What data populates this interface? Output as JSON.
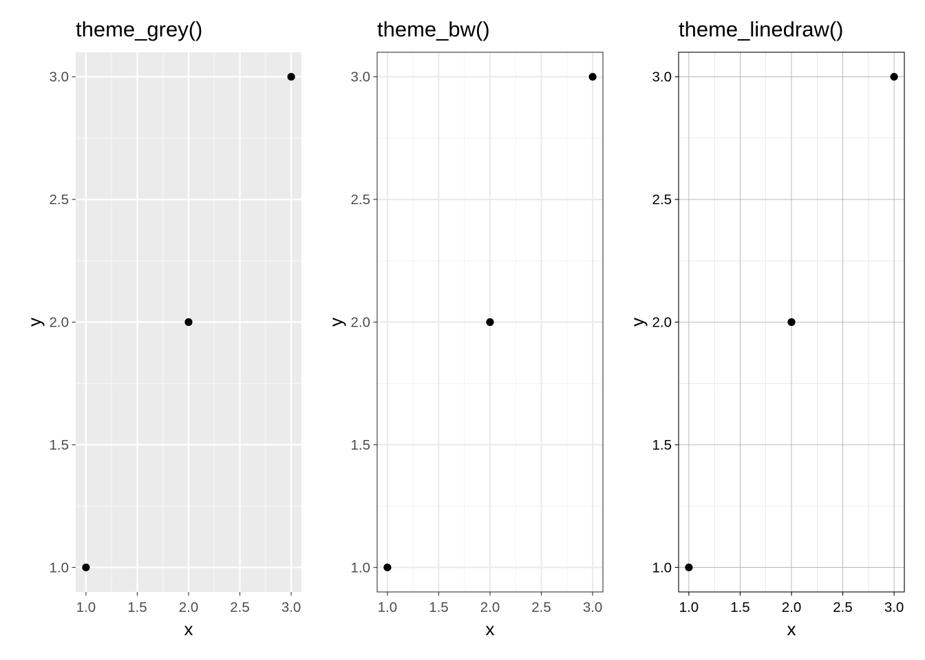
{
  "chart_data": [
    {
      "type": "scatter",
      "theme": "grey",
      "title": "theme_grey()",
      "xlabel": "x",
      "ylabel": "y",
      "xlim": [
        0.9,
        3.1
      ],
      "ylim": [
        0.9,
        3.1
      ],
      "x_ticks": [
        "1.0",
        "1.5",
        "2.0",
        "2.5",
        "3.0"
      ],
      "y_ticks": [
        "1.0",
        "1.5",
        "2.0",
        "2.5",
        "3.0"
      ],
      "x_tick_values": [
        1.0,
        1.5,
        2.0,
        2.5,
        3.0
      ],
      "y_tick_values": [
        1.0,
        1.5,
        2.0,
        2.5,
        3.0
      ],
      "grid": true,
      "x": [
        1,
        2,
        3
      ],
      "y": [
        1,
        2,
        3
      ],
      "colors": {
        "panel": "#EBEBEB",
        "major_grid": "#FFFFFF",
        "minor_grid": "#F6F6F6",
        "point": "#000000",
        "tick_label": "#4D4D4D",
        "tick": "#333333"
      }
    },
    {
      "type": "scatter",
      "theme": "bw",
      "title": "theme_bw()",
      "xlabel": "x",
      "ylabel": "y",
      "xlim": [
        0.9,
        3.1
      ],
      "ylim": [
        0.9,
        3.1
      ],
      "x_ticks": [
        "1.0",
        "1.5",
        "2.0",
        "2.5",
        "3.0"
      ],
      "y_ticks": [
        "1.0",
        "1.5",
        "2.0",
        "2.5",
        "3.0"
      ],
      "x_tick_values": [
        1.0,
        1.5,
        2.0,
        2.5,
        3.0
      ],
      "y_tick_values": [
        1.0,
        1.5,
        2.0,
        2.5,
        3.0
      ],
      "grid": true,
      "x": [
        1,
        2,
        3
      ],
      "y": [
        1,
        2,
        3
      ],
      "colors": {
        "panel": "#FFFFFF",
        "major_grid": "#EBEBEB",
        "minor_grid": "#F3F3F3",
        "border": "#333333",
        "point": "#000000",
        "tick_label": "#4D4D4D",
        "tick": "#333333"
      }
    },
    {
      "type": "scatter",
      "theme": "linedraw",
      "title": "theme_linedraw()",
      "xlabel": "x",
      "ylabel": "y",
      "xlim": [
        0.9,
        3.1
      ],
      "ylim": [
        0.9,
        3.1
      ],
      "x_ticks": [
        "1.0",
        "1.5",
        "2.0",
        "2.5",
        "3.0"
      ],
      "y_ticks": [
        "1.0",
        "1.5",
        "2.0",
        "2.5",
        "3.0"
      ],
      "x_tick_values": [
        1.0,
        1.5,
        2.0,
        2.5,
        3.0
      ],
      "y_tick_values": [
        1.0,
        1.5,
        2.0,
        2.5,
        3.0
      ],
      "grid": true,
      "x": [
        1,
        2,
        3
      ],
      "y": [
        1,
        2,
        3
      ],
      "colors": {
        "panel": "#FFFFFF",
        "major_grid": "#A8A8A8",
        "minor_grid": "#DADADA",
        "border": "#000000",
        "point": "#000000",
        "tick_label": "#000000",
        "tick": "#000000"
      }
    }
  ]
}
